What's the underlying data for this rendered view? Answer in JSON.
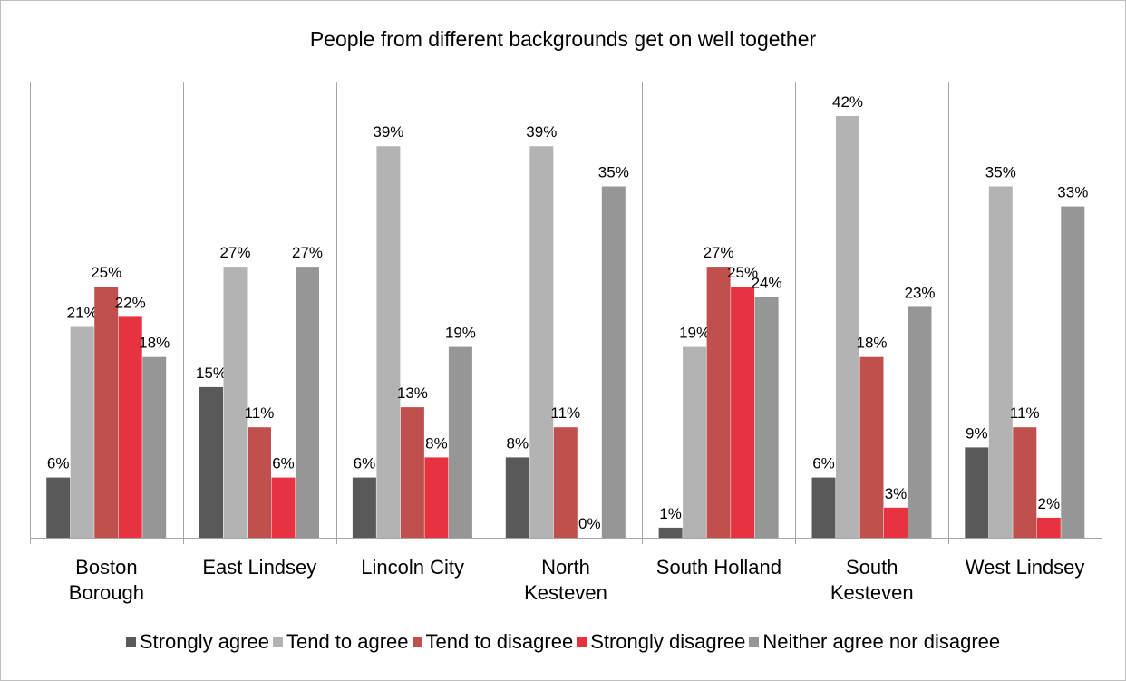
{
  "chart_data": {
    "type": "bar",
    "title": "People from different backgrounds get on well together",
    "categories": [
      "Boston Borough",
      "East Lindsey",
      "Lincoln City",
      "North Kesteven",
      "South Holland",
      "South Kesteven",
      "West Lindsey"
    ],
    "category_lines": [
      [
        "Boston",
        "Borough"
      ],
      [
        "East Lindsey"
      ],
      [
        "Lincoln City"
      ],
      [
        "North",
        "Kesteven"
      ],
      [
        "South Holland"
      ],
      [
        "South",
        "Kesteven"
      ],
      [
        "West Lindsey"
      ]
    ],
    "series": [
      {
        "name": "Strongly agree",
        "color": "#595959",
        "values": [
          6,
          15,
          6,
          8,
          1,
          6,
          9
        ]
      },
      {
        "name": "Tend to agree",
        "color": "#b3b3b3",
        "values": [
          21,
          27,
          39,
          39,
          19,
          42,
          35
        ]
      },
      {
        "name": "Tend to disagree",
        "color": "#c0504d",
        "values": [
          25,
          11,
          13,
          11,
          27,
          18,
          11
        ]
      },
      {
        "name": "Strongly disagree",
        "color": "#e8323f",
        "values": [
          22,
          6,
          8,
          0,
          25,
          3,
          2
        ]
      },
      {
        "name": "Neither agree nor disagree",
        "color": "#969696",
        "values": [
          18,
          27,
          19,
          35,
          24,
          23,
          33
        ]
      }
    ],
    "value_suffix": "%",
    "ylim": [
      0,
      45
    ],
    "grid": false,
    "legend_position": "bottom"
  }
}
